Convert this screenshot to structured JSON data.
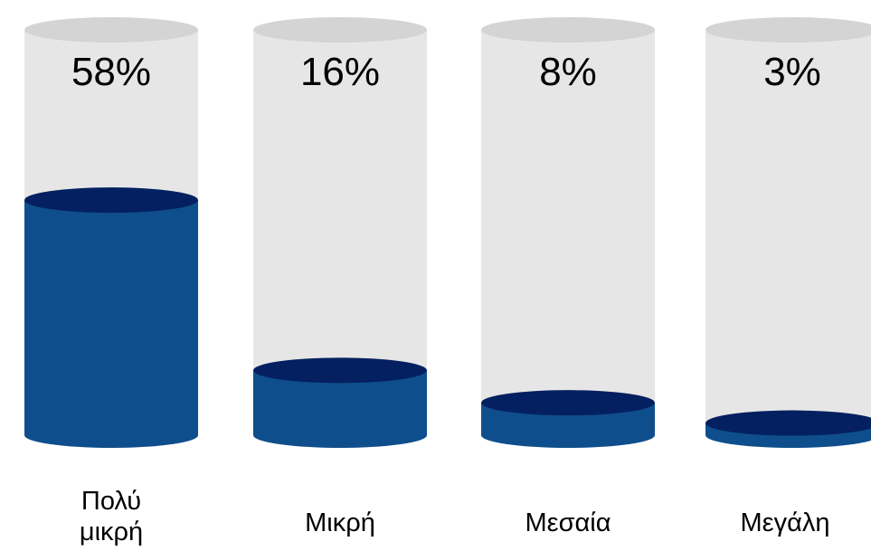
{
  "chart_data": {
    "type": "bar",
    "categories": [
      "Πολύ μικρή",
      "Μικρή",
      "Μεσαία",
      "Μεγάλη"
    ],
    "values": [
      58,
      16,
      8,
      3
    ],
    "value_labels": [
      "58%",
      "16%",
      "8%",
      "3%"
    ],
    "ylim": [
      0,
      100
    ],
    "title": "",
    "xlabel": "",
    "ylabel": "",
    "grid": false,
    "legend": "none"
  },
  "colors": {
    "fill_body": "#0f4e8c",
    "fill_top": "#042060",
    "track_body": "#e6e6e6",
    "track_top": "#d4d4d4"
  }
}
